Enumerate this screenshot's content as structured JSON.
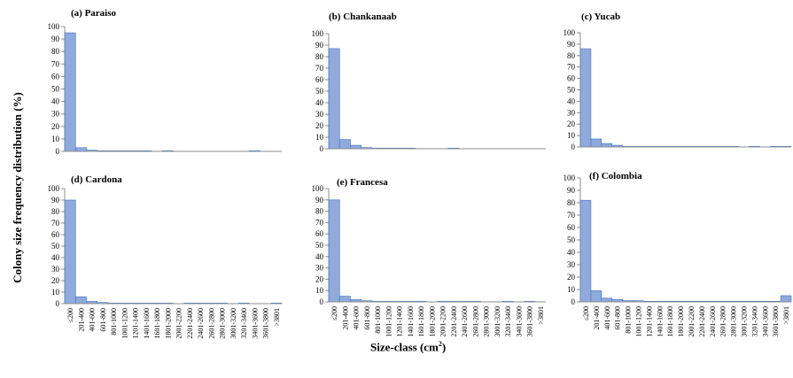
{
  "y_axis_label": "Colony size frequency distribution (%)",
  "x_axis_label": {
    "text": "Size-class (cm",
    "superscript": "2",
    "close": ")"
  },
  "chart_data": [
    {
      "type": "bar",
      "title": "(a) Paraiso",
      "ylim": [
        0,
        100
      ],
      "yticks": [
        "0",
        "10",
        "20",
        "30",
        "40",
        "50",
        "60",
        "70",
        "80",
        "90",
        "100"
      ],
      "categories": [
        "≤200",
        "201-400",
        "401-600",
        "601-800",
        "801-1000",
        "1001-1200",
        "1201-1400",
        "1401-1600",
        "1601-1800",
        "1801-2000",
        "2001-2200",
        "2201-2400",
        "2401-2600",
        "2601-2800",
        "2801-3000",
        "3001-3200",
        "3201-3400",
        "3401-3600",
        "3601-3800",
        ">3801"
      ],
      "values": [
        95,
        3,
        1,
        0.5,
        0.5,
        0.5,
        0.5,
        0.5,
        0,
        0.5,
        0,
        0,
        0,
        0,
        0,
        0,
        0,
        0.5,
        0,
        0
      ],
      "tick_labels_visible": false
    },
    {
      "type": "bar",
      "title": "(b) Chankanaab",
      "ylim": [
        0,
        100
      ],
      "yticks": [
        "0",
        "10",
        "20",
        "30",
        "40",
        "50",
        "60",
        "70",
        "80",
        "90",
        "100"
      ],
      "categories": [
        "≤200",
        "201-400",
        "401-600",
        "601-800",
        "801-1000",
        "1001-1200",
        "1201-1400",
        "1401-1600",
        "1601-1800",
        "1801-2000",
        "2001-2200",
        "2201-2400",
        "2401-2600",
        "2601-2800",
        "2801-3000",
        "3001-3200",
        "3201-3400",
        "3401-3600",
        "3601-3800",
        ">3801"
      ],
      "values": [
        87,
        8,
        3,
        1,
        0.5,
        0.5,
        0.5,
        0.5,
        0,
        0,
        0,
        0.5,
        0,
        0,
        0,
        0,
        0,
        0,
        0,
        0
      ],
      "tick_labels_visible": false
    },
    {
      "type": "bar",
      "title": "(c) Yucab",
      "ylim": [
        0,
        100
      ],
      "yticks": [
        "0",
        "10",
        "20",
        "30",
        "40",
        "50",
        "60",
        "70",
        "80",
        "90",
        "100"
      ],
      "categories": [
        "≤200",
        "201-400",
        "401-600",
        "601-800",
        "801-1000",
        "1001-1200",
        "1201-1400",
        "1401-1600",
        "1601-1800",
        "1801-2000",
        "2001-2200",
        "2201-2400",
        "2401-2600",
        "2601-2800",
        "2801-3000",
        "3001-3200",
        "3201-3400",
        "3401-3600",
        "3601-3800",
        ">3801"
      ],
      "values": [
        86,
        7,
        3,
        1.5,
        0.5,
        0.5,
        0.5,
        0.5,
        0.5,
        0.5,
        0.5,
        0.5,
        0.5,
        0.5,
        0.5,
        0,
        0.5,
        0,
        0.5,
        0.5
      ],
      "tick_labels_visible": false
    },
    {
      "type": "bar",
      "title": "(d) Cardona",
      "ylim": [
        0,
        100
      ],
      "yticks": [
        "0",
        "10",
        "20",
        "30",
        "40",
        "50",
        "60",
        "70",
        "80",
        "90",
        "100"
      ],
      "categories": [
        "≤200",
        "201-400",
        "401-600",
        "601-800",
        "801-1000",
        "1001-1200",
        "1201-1400",
        "1401-1600",
        "1601-1800",
        "1801-2000",
        "2001-2200",
        "2201-2400",
        "2401-2600",
        "2601-2800",
        "2801-3000",
        "3001-3200",
        "3201-3400",
        "3401-3600",
        "3601-3800",
        ">3801"
      ],
      "values": [
        90,
        6,
        2,
        1,
        0.5,
        0.5,
        0.5,
        0.5,
        0.5,
        0.5,
        0,
        0.5,
        0.5,
        0.5,
        0.5,
        0,
        0.5,
        0,
        0,
        0.5
      ],
      "tick_labels_visible": true
    },
    {
      "type": "bar",
      "title": "(e) Francesa",
      "ylim": [
        0,
        100
      ],
      "yticks": [
        "0",
        "10",
        "20",
        "30",
        "40",
        "50",
        "60",
        "70",
        "80",
        "90",
        "100"
      ],
      "categories": [
        "≤200",
        "201-400",
        "401-600",
        "601-800",
        "801-1000",
        "1001-1200",
        "1201-1400",
        "1401-1600",
        "1601-1800",
        "1801-2000",
        "2001-2200",
        "2201-2400",
        "2401-2600",
        "2601-2800",
        "2801-3000",
        "3001-3200",
        "3201-3400",
        "3401-3600",
        "3601-3800",
        ">3801"
      ],
      "values": [
        90,
        5,
        2,
        1,
        0.5,
        0.5,
        0.5,
        0.5,
        0.5,
        0,
        0.5,
        0.5,
        0.5,
        0.5,
        0,
        0,
        0.5,
        0,
        0.5,
        0
      ],
      "tick_labels_visible": true
    },
    {
      "type": "bar",
      "title": "(f) Colombia",
      "ylim": [
        0,
        100
      ],
      "yticks": [
        "0",
        "10",
        "20",
        "30",
        "40",
        "50",
        "60",
        "70",
        "80",
        "90",
        "100"
      ],
      "categories": [
        "≤200",
        "201-400",
        "401-600",
        "601-800",
        "801-1000",
        "1001-1200",
        "1201-1400",
        "1401-1600",
        "1601-1800",
        "1801-2000",
        "2001-2200",
        "2201-2400",
        "2401-2600",
        "2601-2800",
        "2801-3000",
        "3001-3200",
        "3201-3400",
        "3401-3600",
        "3601-3800",
        ">3801"
      ],
      "values": [
        82,
        9,
        3,
        2,
        1,
        1,
        0.5,
        0.5,
        0.5,
        0.5,
        0.5,
        0.5,
        0.5,
        0.5,
        0.5,
        0.5,
        0.5,
        0.5,
        0.5,
        5
      ],
      "tick_labels_visible": true
    }
  ],
  "style": {
    "bar_fill": "#8faadc",
    "bar_stroke": "#4472c4"
  }
}
